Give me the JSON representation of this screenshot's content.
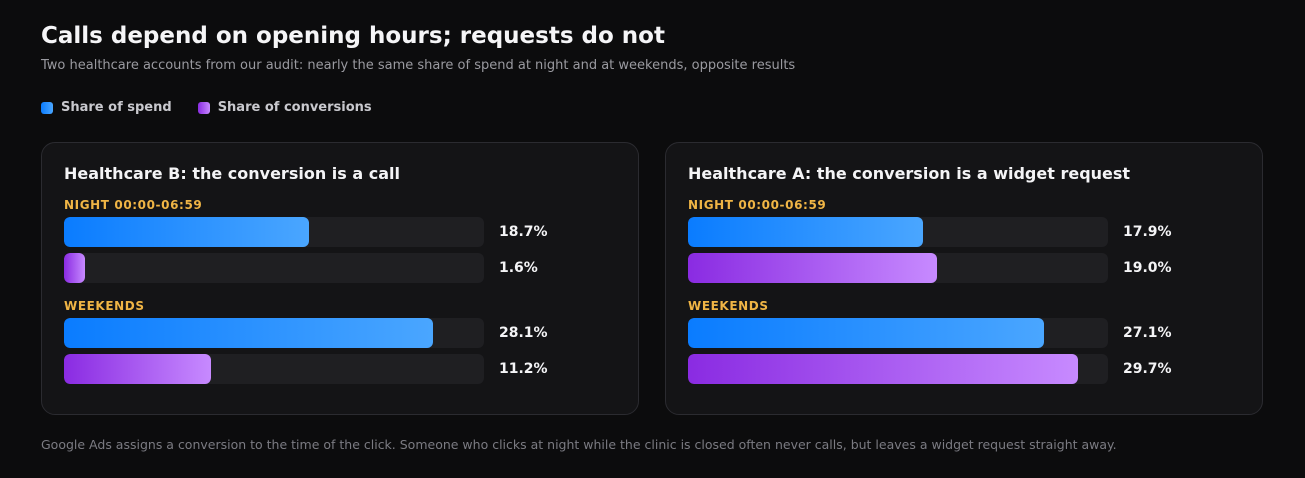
{
  "title": "Calls depend on opening hours; requests do not",
  "subtitle": "Two healthcare accounts from our audit: nearly the same share of spend at night and at weekends, opposite results",
  "legend": [
    {
      "label": "Share of spend",
      "color": "#1a88ff"
    },
    {
      "label": "Share of conversions",
      "color": "#a855f7"
    }
  ],
  "colors": {
    "spend_start": "#0a7cff",
    "spend_end": "#4aa6ff",
    "conv_start": "#8a2be2",
    "conv_end": "#c78aff",
    "group_label": "#f0b545",
    "background": "#0c0c0d",
    "panel": "#141416"
  },
  "chart_data": [
    {
      "type": "bar",
      "title": "Healthcare B: the conversion is a call",
      "groups": [
        "NIGHT 00:00-06:59",
        "WEEKENDS"
      ],
      "series": [
        {
          "name": "Share of spend",
          "values": [
            18.7,
            28.1
          ],
          "labels": [
            "18.7%",
            "28.1%"
          ]
        },
        {
          "name": "Share of conversions",
          "values": [
            1.6,
            11.2
          ],
          "labels": [
            "1.6%",
            "11.2%"
          ]
        }
      ],
      "xlim": [
        0,
        32
      ],
      "unit": "%"
    },
    {
      "type": "bar",
      "title": "Healthcare A: the conversion is a widget request",
      "groups": [
        "NIGHT 00:00-06:59",
        "WEEKENDS"
      ],
      "series": [
        {
          "name": "Share of spend",
          "values": [
            17.9,
            27.1
          ],
          "labels": [
            "17.9%",
            "27.1%"
          ]
        },
        {
          "name": "Share of conversions",
          "values": [
            19.0,
            29.7
          ],
          "labels": [
            "19.0%",
            "29.7%"
          ]
        }
      ],
      "xlim": [
        0,
        32
      ],
      "unit": "%"
    }
  ],
  "footnote": "Google Ads assigns a conversion to the time of the click. Someone who clicks at night while the clinic is closed often never calls, but leaves a widget request straight away."
}
